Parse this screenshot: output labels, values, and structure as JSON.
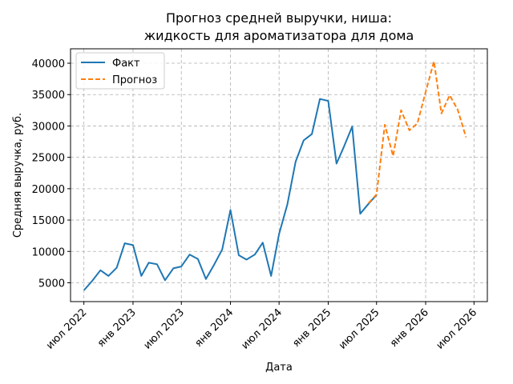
{
  "chart_data": {
    "type": "line",
    "title_line1": "Прогноз средней выручки, ниша:",
    "title_line2": "жидкость для ароматизатора для дома",
    "xlabel": "Дата",
    "ylabel": "Средняя выручка, руб.",
    "grid": true,
    "legend_placement": "top-left",
    "ylim": [
      2000,
      42300
    ],
    "xlim": [
      "2022-05-12",
      "2026-08-20"
    ],
    "y_ticks": [
      5000,
      10000,
      15000,
      20000,
      25000,
      30000,
      35000,
      40000
    ],
    "y_tick_labels": [
      "5000",
      "10000",
      "15000",
      "20000",
      "25000",
      "30000",
      "35000",
      "40000"
    ],
    "x_ticks": [
      "2022-07-01",
      "2023-01-01",
      "2023-07-01",
      "2024-01-01",
      "2024-07-01",
      "2025-01-01",
      "2025-07-01",
      "2026-01-01",
      "2026-07-01"
    ],
    "x_tick_labels": [
      "июл 2022",
      "янв 2023",
      "июл 2023",
      "янв 2024",
      "июл 2024",
      "янв 2025",
      "июл 2025",
      "янв 2026",
      "июл 2026"
    ],
    "series": [
      {
        "name": "Факт",
        "color": "#1f77b4",
        "style": "solid",
        "points": [
          [
            "2022-07-01",
            3800
          ],
          [
            "2022-08-01",
            5300
          ],
          [
            "2022-09-01",
            7000
          ],
          [
            "2022-10-01",
            6100
          ],
          [
            "2022-11-01",
            7400
          ],
          [
            "2022-12-01",
            11300
          ],
          [
            "2023-01-01",
            11000
          ],
          [
            "2023-02-01",
            6100
          ],
          [
            "2023-03-01",
            8200
          ],
          [
            "2023-04-01",
            7950
          ],
          [
            "2023-05-01",
            5400
          ],
          [
            "2023-06-01",
            7300
          ],
          [
            "2023-07-01",
            7600
          ],
          [
            "2023-08-01",
            9500
          ],
          [
            "2023-09-01",
            8800
          ],
          [
            "2023-10-01",
            5600
          ],
          [
            "2023-11-01",
            7900
          ],
          [
            "2023-12-01",
            10300
          ],
          [
            "2024-01-01",
            16600
          ],
          [
            "2024-02-01",
            9400
          ],
          [
            "2024-03-01",
            8700
          ],
          [
            "2024-04-01",
            9500
          ],
          [
            "2024-05-01",
            11400
          ],
          [
            "2024-06-01",
            6100
          ],
          [
            "2024-07-01",
            12800
          ],
          [
            "2024-08-01",
            17500
          ],
          [
            "2024-09-01",
            24300
          ],
          [
            "2024-10-01",
            27700
          ],
          [
            "2024-11-01",
            28700
          ],
          [
            "2024-12-01",
            34300
          ],
          [
            "2025-01-01",
            34000
          ],
          [
            "2025-02-01",
            24000
          ],
          [
            "2025-03-01",
            26700
          ],
          [
            "2025-04-01",
            29900
          ],
          [
            "2025-05-01",
            16000
          ],
          [
            "2025-06-01",
            17600
          ],
          [
            "2025-07-01",
            19000
          ]
        ]
      },
      {
        "name": "Прогноз",
        "color": "#ff7f0e",
        "style": "dashed",
        "points": [
          [
            "2025-06-01",
            17700
          ],
          [
            "2025-07-01",
            19100
          ],
          [
            "2025-08-01",
            30200
          ],
          [
            "2025-09-01",
            25200
          ],
          [
            "2025-10-01",
            32500
          ],
          [
            "2025-11-01",
            29300
          ],
          [
            "2025-12-01",
            30400
          ],
          [
            "2026-01-01",
            35400
          ],
          [
            "2026-02-01",
            40300
          ],
          [
            "2026-03-01",
            32000
          ],
          [
            "2026-04-01",
            34900
          ],
          [
            "2026-05-01",
            32600
          ],
          [
            "2026-06-01",
            28200
          ]
        ]
      }
    ]
  }
}
